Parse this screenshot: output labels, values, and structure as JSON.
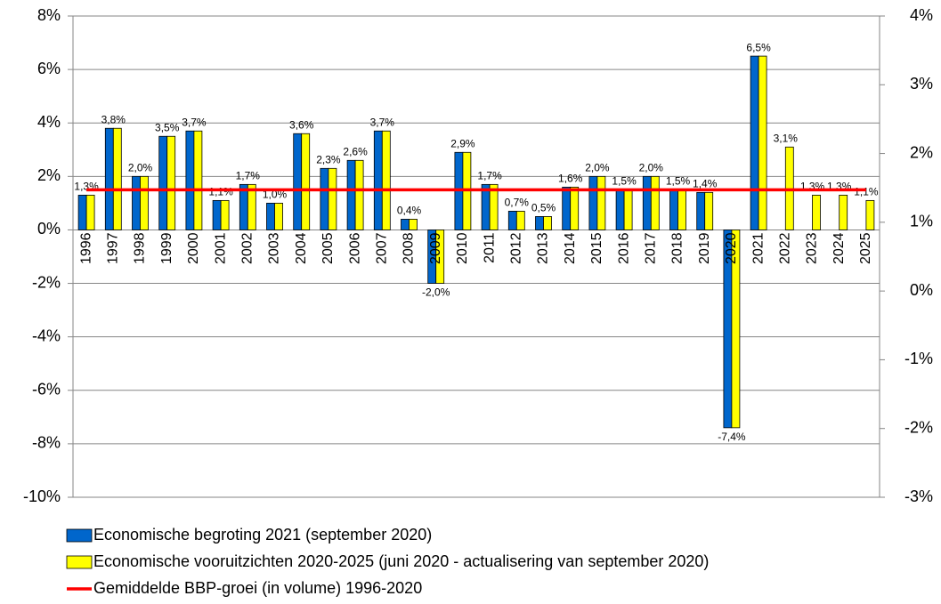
{
  "chart_data": {
    "type": "bar",
    "categories": [
      "1996",
      "1997",
      "1998",
      "1999",
      "2000",
      "2001",
      "2002",
      "2003",
      "2004",
      "2005",
      "2006",
      "2007",
      "2008",
      "2009",
      "2010",
      "2011",
      "2012",
      "2013",
      "2014",
      "2015",
      "2016",
      "2017",
      "2018",
      "2019",
      "2020",
      "2021",
      "2022",
      "2023",
      "2024",
      "2025"
    ],
    "series": [
      {
        "name": "Economische begroting 2021 (september 2020)",
        "color": "#0066cc",
        "type": "bar",
        "values": [
          1.3,
          3.8,
          2.0,
          3.5,
          3.7,
          1.1,
          1.7,
          1.0,
          3.6,
          2.3,
          2.6,
          3.7,
          0.4,
          -2.0,
          2.9,
          1.7,
          0.7,
          0.5,
          1.6,
          2.0,
          1.5,
          2.0,
          1.5,
          1.4,
          -7.4,
          6.5,
          null,
          null,
          null,
          null
        ]
      },
      {
        "name": "Economische vooruitzichten 2020-2025 (juni 2020 - actualisering van september 2020)",
        "color": "#ffff00",
        "type": "bar",
        "values": [
          1.3,
          3.8,
          2.0,
          3.5,
          3.7,
          1.1,
          1.7,
          1.0,
          3.6,
          2.3,
          2.6,
          3.7,
          0.4,
          -2.0,
          2.9,
          1.7,
          0.7,
          0.5,
          1.6,
          2.0,
          1.5,
          2.0,
          1.5,
          1.4,
          -7.4,
          6.5,
          3.1,
          1.3,
          1.3,
          1.1
        ],
        "value_labels": [
          "1,3%",
          "3,8%",
          "2,0%",
          "3,5%",
          "3,7%",
          "1,1%",
          "1,7%",
          "1,0%",
          "3,6%",
          "2,3%",
          "2,6%",
          "3,7%",
          "0,4%",
          "-2,0%",
          "2,9%",
          "1,7%",
          "0,7%",
          "0,5%",
          "1,6%",
          "2,0%",
          "1,5%",
          "2,0%",
          "1,5%",
          "1,4%",
          "-7,4%",
          "6,5%",
          "3,1%",
          "1,3%",
          "1,3%",
          "1,1%"
        ]
      },
      {
        "name": "Gemiddelde BBP-groei (in volume) 1996-2020",
        "color": "#ff0000",
        "type": "line",
        "values": [
          1.5,
          1.5,
          1.5,
          1.5,
          1.5,
          1.5,
          1.5,
          1.5,
          1.5,
          1.5,
          1.5,
          1.5,
          1.5,
          1.5,
          1.5,
          1.5,
          1.5,
          1.5,
          1.5,
          1.5,
          1.5,
          1.5,
          1.5,
          1.5,
          1.5,
          1.5,
          1.5,
          1.5,
          1.5,
          1.5
        ]
      }
    ],
    "ylim": [
      -10,
      8
    ],
    "yticks": [
      {
        "value": -10,
        "label": "-10%"
      },
      {
        "value": -8,
        "label": "-8%"
      },
      {
        "value": -6,
        "label": "-6%"
      },
      {
        "value": -4,
        "label": "-4%"
      },
      {
        "value": -2,
        "label": "-2%"
      },
      {
        "value": 0,
        "label": "0%"
      },
      {
        "value": 2,
        "label": "2%"
      },
      {
        "value": 4,
        "label": "4%"
      },
      {
        "value": 6,
        "label": "6%"
      },
      {
        "value": 8,
        "label": "8%"
      }
    ],
    "y2lim": [
      -3,
      4
    ],
    "y2ticks": [
      {
        "value": -3,
        "label": "-3%"
      },
      {
        "value": -2,
        "label": "-2%"
      },
      {
        "value": -1,
        "label": "-1%"
      },
      {
        "value": 0,
        "label": "0%"
      },
      {
        "value": 1,
        "label": "1%"
      },
      {
        "value": 2,
        "label": "2%"
      },
      {
        "value": 3,
        "label": "3%"
      },
      {
        "value": 4,
        "label": "4%"
      }
    ],
    "grid": true
  }
}
